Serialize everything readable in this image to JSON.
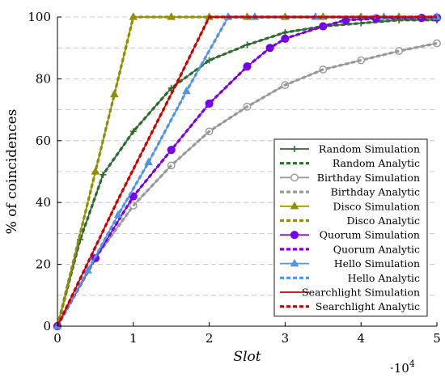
{
  "chart_data": {
    "type": "line",
    "xlabel": "Slot",
    "ylabel": "% of coincidences",
    "x_multiplier_label": "·10",
    "x_multiplier_exp": "4",
    "xlim": [
      0,
      5
    ],
    "ylim": [
      0,
      100
    ],
    "xticks": [
      0,
      1,
      2,
      3,
      4,
      5
    ],
    "yticks": [
      0,
      20,
      40,
      60,
      80,
      100
    ],
    "grid": "horizontal-dashed",
    "legend_position": "bottom-right",
    "series": [
      {
        "name": "Random Simulation",
        "color": "#2e6b2e",
        "style": "solid",
        "marker": "plus",
        "x": [
          0,
          0.3,
          0.6,
          1.0,
          1.5,
          2.0,
          2.5,
          3.0,
          3.5,
          4.0,
          4.5,
          5.0
        ],
        "y": [
          0,
          28,
          49,
          63,
          77,
          86,
          91,
          95,
          97,
          98,
          99,
          99
        ]
      },
      {
        "name": "Random Analytic",
        "color": "#2e6b2e",
        "style": "dashed",
        "marker": "none",
        "x": [
          0,
          0.3,
          0.6,
          1.0,
          1.5,
          2.0,
          2.5,
          3.0,
          3.5,
          4.0,
          4.5,
          5.0
        ],
        "y": [
          0,
          28,
          49,
          63,
          77,
          86,
          91,
          95,
          97,
          98,
          99,
          99
        ]
      },
      {
        "name": "Birthday Simulation",
        "color": "#999999",
        "style": "solid",
        "marker": "circle",
        "x": [
          0,
          0.5,
          1.0,
          1.5,
          2.0,
          2.5,
          3.0,
          3.5,
          4.0,
          4.5,
          5.0
        ],
        "y": [
          0,
          22,
          39,
          52,
          63,
          71,
          78,
          83,
          86,
          89,
          91.5
        ]
      },
      {
        "name": "Birthday Analytic",
        "color": "#999999",
        "style": "dashed",
        "marker": "none",
        "x": [
          0,
          0.5,
          1.0,
          1.5,
          2.0,
          2.5,
          3.0,
          3.5,
          4.0,
          4.5,
          5.0
        ],
        "y": [
          0,
          22,
          39,
          52,
          63,
          71,
          78,
          83,
          86,
          89,
          91.5
        ]
      },
      {
        "name": "Disco Simulation",
        "color": "#8f8f00",
        "style": "solid",
        "marker": "triangle",
        "x": [
          0,
          0.5,
          0.75,
          1.0,
          1.5,
          2.0,
          2.5,
          3.0,
          3.5,
          4.0,
          4.5,
          5.0
        ],
        "y": [
          0,
          50,
          75,
          100,
          100,
          100,
          100,
          100,
          100,
          100,
          100,
          100
        ]
      },
      {
        "name": "Disco Analytic",
        "color": "#8f8f00",
        "style": "dashed",
        "marker": "none",
        "x": [
          0,
          0.5,
          0.75,
          1.0,
          1.5,
          2.0,
          2.5,
          3.0,
          3.5,
          4.0,
          4.5,
          5.0
        ],
        "y": [
          0,
          50,
          75,
          100,
          100,
          100,
          100,
          100,
          100,
          100,
          100,
          100
        ]
      },
      {
        "name": "Quorum Simulation",
        "color": "#7700ee",
        "style": "solid",
        "marker": "filled-circle",
        "x": [
          0,
          0.5,
          1.0,
          1.5,
          2.0,
          2.5,
          2.8,
          3.0,
          3.5,
          3.8,
          4.2,
          4.8,
          5.0
        ],
        "y": [
          0,
          22,
          42,
          57,
          72,
          84,
          90,
          93,
          97,
          99,
          99.5,
          99.7,
          99.8
        ]
      },
      {
        "name": "Quorum Analytic",
        "color": "#7700ee",
        "style": "dashed",
        "marker": "none",
        "x": [
          0,
          0.5,
          1.0,
          1.5,
          2.0,
          2.5,
          2.8,
          3.0,
          3.5,
          3.8,
          4.2,
          4.8,
          5.0
        ],
        "y": [
          0,
          22,
          42,
          57,
          72,
          84,
          90,
          93,
          97,
          99,
          99.5,
          99.7,
          99.8
        ]
      },
      {
        "name": "Hello Simulation",
        "color": "#4f94e8",
        "style": "solid",
        "marker": "triangle",
        "x": [
          0,
          0.4,
          0.8,
          1.2,
          1.7,
          2.25,
          2.6,
          3.4,
          4.3,
          5.0
        ],
        "y": [
          0,
          18,
          36,
          53,
          76,
          100,
          100,
          100,
          100,
          100
        ]
      },
      {
        "name": "Hello Analytic",
        "color": "#4f94e8",
        "style": "dashed",
        "marker": "none",
        "x": [
          0,
          0.4,
          0.8,
          1.2,
          1.7,
          2.25,
          2.6,
          3.4,
          4.3,
          5.0
        ],
        "y": [
          0,
          18,
          36,
          53,
          76,
          100,
          100,
          100,
          100,
          100
        ]
      },
      {
        "name": "Searchlight Simulation",
        "color": "#cc0000",
        "style": "solid",
        "marker": "none",
        "x": [
          0,
          0.8,
          1.6,
          2.0,
          3.0,
          4.0,
          5.0
        ],
        "y": [
          0,
          41,
          80,
          100,
          100,
          100,
          100
        ]
      },
      {
        "name": "Searchlight Analytic",
        "color": "#cc0000",
        "style": "dashed",
        "marker": "none",
        "x": [
          0,
          0.8,
          1.6,
          2.0,
          3.0,
          4.0,
          5.0
        ],
        "y": [
          0,
          41,
          80,
          100,
          100,
          100,
          100
        ]
      }
    ]
  }
}
